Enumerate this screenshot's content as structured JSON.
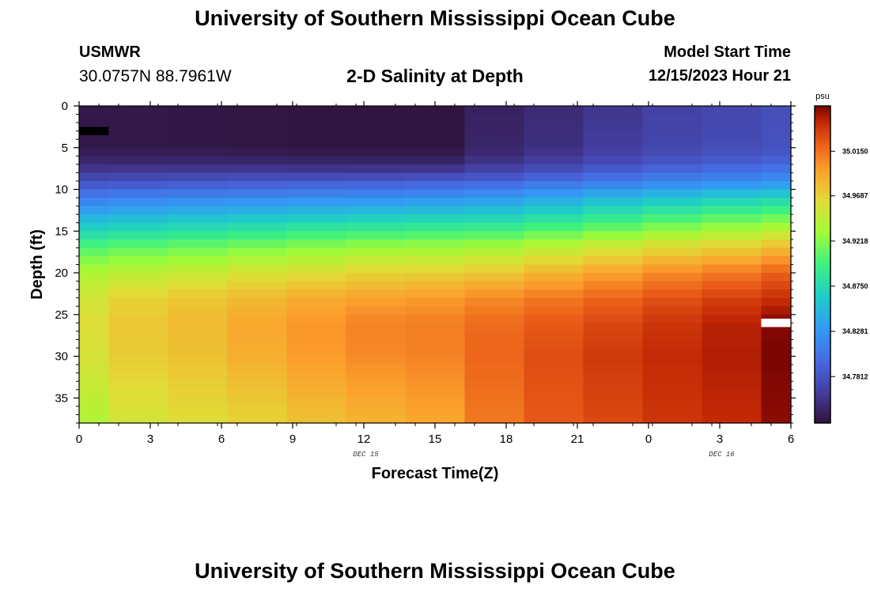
{
  "header": {
    "title": "University of Southern Mississippi Ocean Cube",
    "station_id": "USMWR",
    "coords": "30.0757N  88.7961W",
    "subtitle": "2-D Salinity at Depth",
    "start_label": "Model Start Time",
    "start_value": "12/15/2023 Hour 21"
  },
  "footer": {
    "title": "University of Southern Mississippi Ocean Cube"
  },
  "colors": {
    "missing": "#000000",
    "gap": "#ffffff"
  },
  "chart_data": {
    "type": "heatmap",
    "title": "2-D Salinity at Depth",
    "xlabel": "Forecast Time(Z)",
    "ylabel": "Depth (ft)",
    "x_tick_labels": [
      "0",
      "3",
      "6",
      "9",
      "12",
      "15",
      "18",
      "21",
      "0",
      "3",
      "6"
    ],
    "x_range_hours": [
      0,
      36
    ],
    "date_labels": [
      {
        "text": "DEC 15",
        "at_hour": 14.5
      },
      {
        "text": "DEC 16",
        "at_hour": 32.5
      }
    ],
    "y_tick_labels": [
      "0",
      "5",
      "10",
      "15",
      "20",
      "25",
      "30",
      "35"
    ],
    "y_ticks": [
      0,
      5,
      10,
      15,
      20,
      25,
      30,
      35
    ],
    "ylim": [
      0,
      38
    ],
    "colorbar": {
      "unit": "psu",
      "range": [
        34.733,
        35.062
      ],
      "labels": [
        "35.0150",
        "34.9687",
        "34.9218",
        "34.8750",
        "34.8281",
        "34.7812"
      ],
      "values": [
        35.015,
        34.9687,
        34.9218,
        34.875,
        34.8281,
        34.7812
      ]
    },
    "time_columns_hours": [
      0,
      1.5,
      4.5,
      7.5,
      10.5,
      13.5,
      16.5,
      19.5,
      22.5,
      25.5,
      28.5,
      31.5,
      34.5,
      36
    ],
    "depth_layers_ft": 38,
    "missing_cells": [
      {
        "col": 0,
        "depth_from": 2.5,
        "depth_to": 3.5
      }
    ],
    "gap_cells": [
      {
        "col": 12,
        "depth_from": 25.5,
        "depth_to": 26.5
      }
    ],
    "profile_anchors": {
      "depths": [
        0,
        5,
        7,
        9,
        11,
        14,
        17,
        20,
        23,
        26,
        30,
        38
      ],
      "columns": [
        [
          34.738,
          34.738,
          34.752,
          34.778,
          34.81,
          34.858,
          34.905,
          34.938,
          34.955,
          34.962,
          34.958,
          34.938
        ],
        [
          34.738,
          34.738,
          34.752,
          34.78,
          34.815,
          34.862,
          34.91,
          34.945,
          34.968,
          34.975,
          34.972,
          34.955
        ],
        [
          34.737,
          34.737,
          34.752,
          34.782,
          34.818,
          34.866,
          34.915,
          34.95,
          34.975,
          34.982,
          34.978,
          34.962
        ],
        [
          34.736,
          34.736,
          34.752,
          34.784,
          34.82,
          34.87,
          34.92,
          34.958,
          34.982,
          34.992,
          34.988,
          34.968
        ],
        [
          34.735,
          34.735,
          34.75,
          34.785,
          34.822,
          34.875,
          34.925,
          34.962,
          34.99,
          35.0,
          34.998,
          34.978
        ],
        [
          34.735,
          34.735,
          34.75,
          34.786,
          34.823,
          34.878,
          34.93,
          34.968,
          34.995,
          35.008,
          35.005,
          34.985
        ],
        [
          34.735,
          34.735,
          34.75,
          34.788,
          34.826,
          34.88,
          34.932,
          34.97,
          34.998,
          35.01,
          35.008,
          34.992
        ],
        [
          34.745,
          34.748,
          34.76,
          34.792,
          34.83,
          34.882,
          34.935,
          34.975,
          35.005,
          35.018,
          35.02,
          35.012
        ],
        [
          34.752,
          34.755,
          34.768,
          34.8,
          34.84,
          34.89,
          34.945,
          34.985,
          35.012,
          35.025,
          35.03,
          35.025
        ],
        [
          34.76,
          34.765,
          34.778,
          34.808,
          34.85,
          34.9,
          34.955,
          34.995,
          35.02,
          35.032,
          35.038,
          35.032
        ],
        [
          34.768,
          34.772,
          34.785,
          34.815,
          34.858,
          34.91,
          34.965,
          35.005,
          35.028,
          35.04,
          35.045,
          35.04
        ],
        [
          34.772,
          34.776,
          34.79,
          34.82,
          34.865,
          34.918,
          34.972,
          35.012,
          35.035,
          35.048,
          35.05,
          35.045
        ],
        [
          34.778,
          34.78,
          34.795,
          34.825,
          34.87,
          34.925,
          34.982,
          35.022,
          35.042,
          35.06,
          35.062,
          35.058
        ]
      ]
    }
  }
}
